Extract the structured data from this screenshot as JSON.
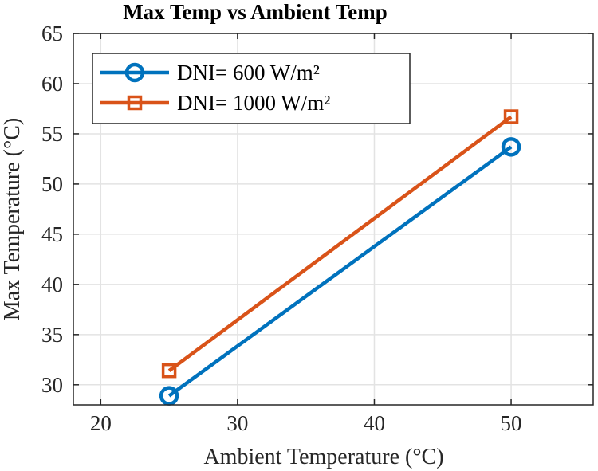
{
  "chart_data": {
    "type": "line",
    "title": "Max Temp vs Ambient Temp",
    "xlabel": "Ambient Temperature (°C)",
    "ylabel": "Max Temperature (°C)",
    "xlim": [
      18,
      56
    ],
    "ylim": [
      28,
      65
    ],
    "xticks": [
      20,
      30,
      40,
      50
    ],
    "yticks": [
      30,
      35,
      40,
      45,
      50,
      55,
      60,
      65
    ],
    "grid": true,
    "legend_position": "top-left",
    "series": [
      {
        "name": "DNI= 600 W/m²",
        "marker": "circle",
        "color": "#0072BD",
        "x": [
          25,
          50
        ],
        "y": [
          28.9,
          53.7
        ]
      },
      {
        "name": "DNI= 1000 W/m²",
        "marker": "square",
        "color": "#D95319",
        "x": [
          25,
          50
        ],
        "y": [
          31.4,
          56.7
        ]
      }
    ]
  }
}
